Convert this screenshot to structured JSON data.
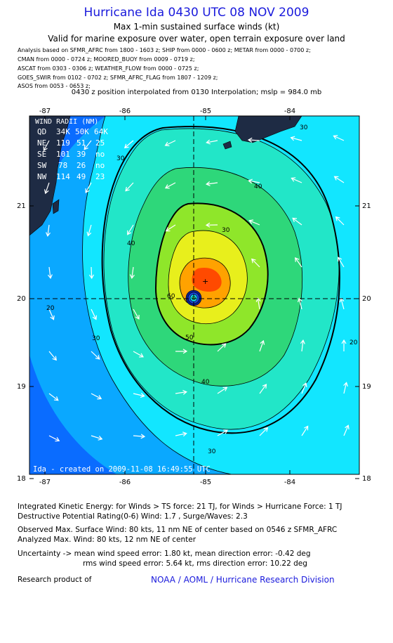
{
  "header": {
    "title": "Hurricane Ida 0430 UTC 08 NOV 2009",
    "subtitle": "Max 1-min sustained surface winds (kt)",
    "validity": "Valid for marine exposure over water, open terrain exposure over land",
    "sources": [
      "Analysis based on   SFMR_AFRC from 1800 - 1603 z;  SHIP from 0000 - 0600 z;  METAR from 0000 - 0700 z;",
      "CMAN from 0000 - 0724 z;  MOORED_BUOY from 0009 - 0719 z;",
      "ASCAT from 0303 - 0306 z;  WEATHER_FLOW from 0000 - 0725 z;",
      "GOES_SWIR from 0102 - 0702 z;  SFMR_AFRC_FLAG from 1807 - 1209 z;",
      "ASOS from 0053 - 0653 z;"
    ],
    "interpolation": "0430 z position interpolated from 0130 Interpolation; mslp = 984.0 mb"
  },
  "map": {
    "lon_ticks": [
      "-87",
      "-86",
      "-85",
      "-84"
    ],
    "lat_ticks": [
      "21",
      "20",
      "19",
      "18"
    ],
    "lon_range": [
      -87.2,
      -84.0
    ],
    "lat_range": [
      18.0,
      21.5
    ],
    "center": {
      "lon": -85.1,
      "lat": 20.0
    },
    "wind_radii": {
      "title": "WIND RADII (NM)",
      "header": [
        "QD",
        "34K",
        "50K",
        "64K"
      ],
      "rows": [
        [
          "NE",
          "119",
          "51",
          "25"
        ],
        [
          "SE",
          "101",
          "39",
          "no"
        ],
        [
          "SW",
          "78",
          "26",
          "no"
        ],
        [
          "NW",
          "114",
          "49",
          "23"
        ]
      ]
    },
    "contour_labels": [
      "20",
      "30",
      "40",
      "50",
      "60"
    ],
    "watermark": "Ida - created on 2009-11-08 16:49:55 UTC",
    "colors": {
      "band_10": "#0a6cff",
      "band_20": "#0aa8ff",
      "band_30": "#12e6ff",
      "band_40": "#22e6c8",
      "band_50": "#2ed77a",
      "band_60": "#8fe62a",
      "band_70": "#e8ef1c",
      "band_80": "#ffa200",
      "band_max": "#ff4a00",
      "land": "#1e2b44"
    }
  },
  "footer": {
    "ike": "Integrated Kinetic Energy:  for Winds > TS force: 21 TJ,  for Winds > Hurricane Force: 1 TJ",
    "dpr": "Destructive Potential Rating(0-6)   Wind: 1.7 , Surge/Waves: 2.3",
    "obs": "Observed Max. Surface Wind: 80 kts, 11 nm NE of center based on 0546 z SFMR_AFRC",
    "analyzed": "Analyzed Max. Wind: 80 kts, 12 nm NE of center",
    "unc1": "Uncertainty -> mean wind speed error: 1.80 kt,   mean direction error:  -0.42 deg",
    "unc2": "rms wind speed error: 5.64 kt,   rms direction error: 10.22 deg",
    "research": "Research product of",
    "org": "NOAA / AOML / Hurricane Research Division"
  }
}
